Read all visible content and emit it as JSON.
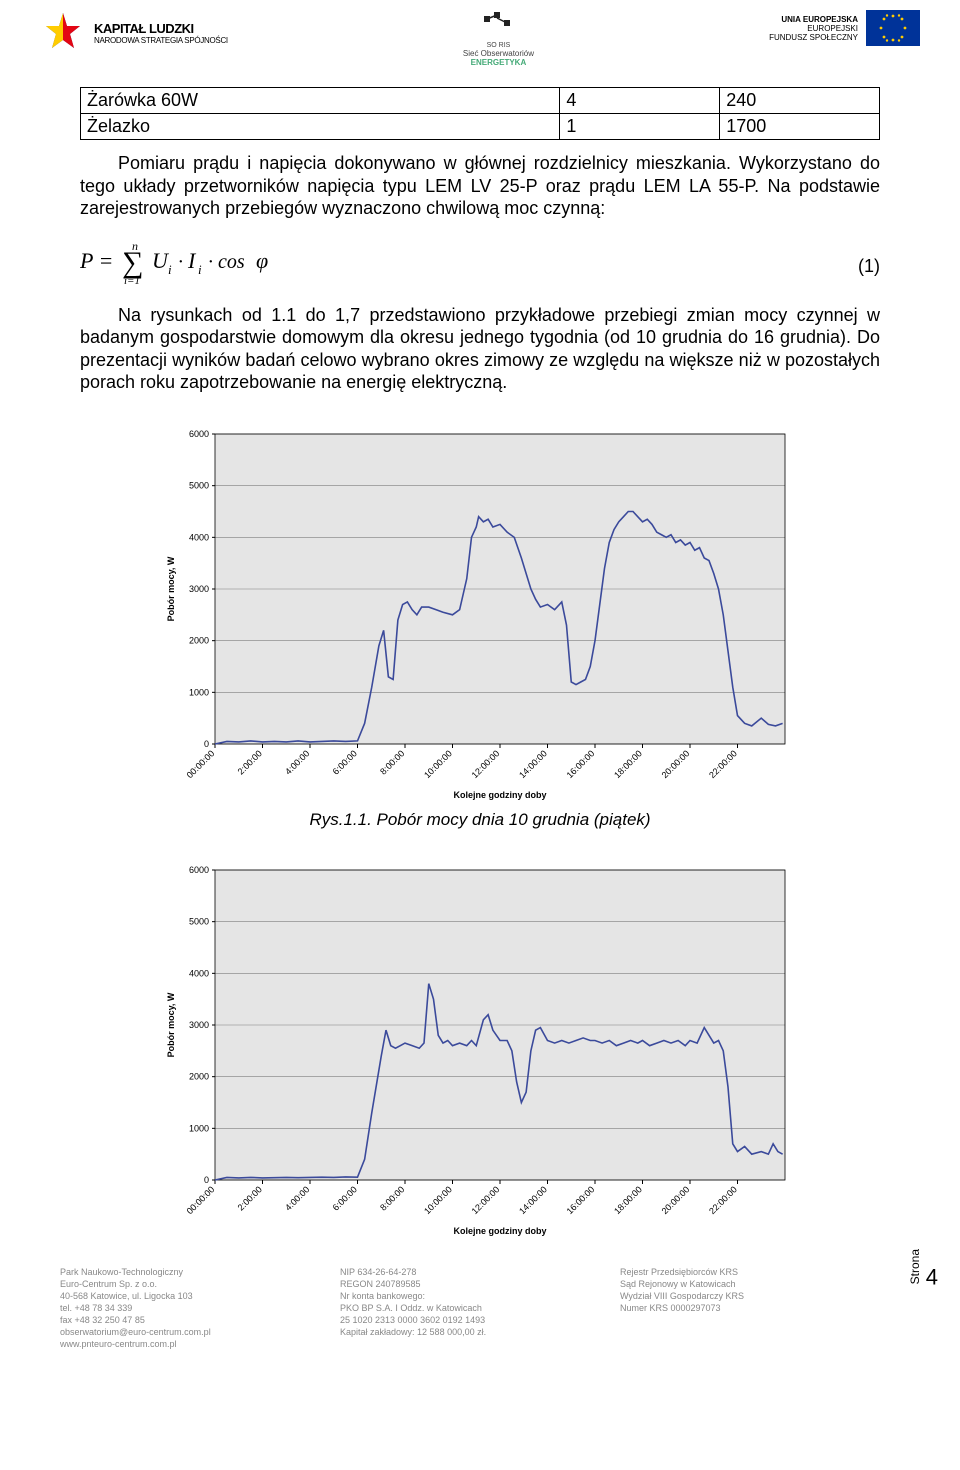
{
  "header": {
    "kl_title": "KAPITAŁ LUDZKI",
    "kl_sub": "NARODOWA STRATEGIA SPÓJNOŚCI",
    "center_line1": "SO RIS",
    "center_line2": "Sieć Obserwatoriów",
    "center_line3": "ENERGETYKA",
    "eu_line1": "UNIA EUROPEJSKA",
    "eu_line2": "EUROPEJSKI",
    "eu_line3": "FUNDUSZ SPOŁECZNY"
  },
  "table": {
    "rows": [
      [
        "Żarówka 60W",
        "4",
        "240"
      ],
      [
        "Żelazko",
        "1",
        "1700"
      ]
    ]
  },
  "paragraph1": "Pomiaru prądu i napięcia dokonywano w głównej rozdzielnicy mieszkania. Wykorzystano do tego układy przetworników napięcia typu LEM LV 25-P oraz prądu LEM LA 55-P. Na podstawie zarejestrowanych przebiegów wyznaczono chwilową moc czynną:",
  "eq_number": "(1)",
  "paragraph2": "Na rysunkach od 1.1 do 1,7 przedstawiono przykładowe przebiegi zmian mocy czynnej w badanym gospodarstwie domowym dla okresu jednego tygodnia (od 10 grudnia do 16 grudnia). Do prezentacji wyników badań celowo wybrano okres zimowy ze względu na większe niż w pozostałych porach roku zapotrzebowanie na energię elektryczną.",
  "caption1": "Rys.1.1. Pobór mocy dnia 10 grudnia (piątek)",
  "chart1": {
    "type": "line",
    "ylabel": "Pobór mocy, W",
    "xlabel": "Kolejne godziny doby",
    "ylim": [
      0,
      6000
    ],
    "ytick_step": 1000,
    "xticks": [
      "00:00:00",
      "2:00:00",
      "4:00:00",
      "6:00:00",
      "8:00:00",
      "10:00:00",
      "12:00:00",
      "14:00:00",
      "16:00:00",
      "18:00:00",
      "20:00:00",
      "22:00:00"
    ],
    "line_color": "#3b4a9b",
    "grid_color": "#7f7f7f",
    "plot_bg": "#e5e5e5",
    "background": "#ffffff",
    "font_size": 9,
    "points": [
      [
        0,
        0
      ],
      [
        0.5,
        50
      ],
      [
        1,
        40
      ],
      [
        1.5,
        60
      ],
      [
        2,
        40
      ],
      [
        2.5,
        50
      ],
      [
        3,
        40
      ],
      [
        3.5,
        60
      ],
      [
        4,
        40
      ],
      [
        4.5,
        50
      ],
      [
        5,
        60
      ],
      [
        5.5,
        50
      ],
      [
        6,
        60
      ],
      [
        6.3,
        400
      ],
      [
        6.6,
        1100
      ],
      [
        6.9,
        1900
      ],
      [
        7.1,
        2200
      ],
      [
        7.3,
        1300
      ],
      [
        7.5,
        1250
      ],
      [
        7.7,
        2400
      ],
      [
        7.9,
        2700
      ],
      [
        8.1,
        2750
      ],
      [
        8.3,
        2600
      ],
      [
        8.5,
        2500
      ],
      [
        8.7,
        2650
      ],
      [
        9,
        2650
      ],
      [
        9.3,
        2600
      ],
      [
        9.6,
        2550
      ],
      [
        10,
        2500
      ],
      [
        10.3,
        2600
      ],
      [
        10.6,
        3200
      ],
      [
        10.8,
        4000
      ],
      [
        11,
        4200
      ],
      [
        11.1,
        4400
      ],
      [
        11.3,
        4300
      ],
      [
        11.5,
        4350
      ],
      [
        11.7,
        4200
      ],
      [
        12,
        4250
      ],
      [
        12.3,
        4100
      ],
      [
        12.6,
        4000
      ],
      [
        12.9,
        3600
      ],
      [
        13.1,
        3300
      ],
      [
        13.3,
        3000
      ],
      [
        13.5,
        2800
      ],
      [
        13.7,
        2650
      ],
      [
        14,
        2700
      ],
      [
        14.3,
        2600
      ],
      [
        14.6,
        2750
      ],
      [
        14.8,
        2300
      ],
      [
        15,
        1200
      ],
      [
        15.2,
        1150
      ],
      [
        15.4,
        1200
      ],
      [
        15.6,
        1250
      ],
      [
        15.8,
        1500
      ],
      [
        16,
        2000
      ],
      [
        16.2,
        2700
      ],
      [
        16.4,
        3400
      ],
      [
        16.6,
        3900
      ],
      [
        16.8,
        4150
      ],
      [
        17,
        4300
      ],
      [
        17.2,
        4400
      ],
      [
        17.4,
        4500
      ],
      [
        17.6,
        4500
      ],
      [
        17.8,
        4400
      ],
      [
        18,
        4300
      ],
      [
        18.2,
        4350
      ],
      [
        18.4,
        4250
      ],
      [
        18.6,
        4100
      ],
      [
        18.8,
        4050
      ],
      [
        19,
        4000
      ],
      [
        19.2,
        4050
      ],
      [
        19.4,
        3900
      ],
      [
        19.6,
        3950
      ],
      [
        19.8,
        3850
      ],
      [
        20,
        3900
      ],
      [
        20.2,
        3750
      ],
      [
        20.4,
        3800
      ],
      [
        20.6,
        3600
      ],
      [
        20.8,
        3550
      ],
      [
        21,
        3300
      ],
      [
        21.2,
        3000
      ],
      [
        21.4,
        2500
      ],
      [
        21.6,
        1800
      ],
      [
        21.8,
        1100
      ],
      [
        22,
        550
      ],
      [
        22.3,
        400
      ],
      [
        22.6,
        350
      ],
      [
        23,
        500
      ],
      [
        23.3,
        380
      ],
      [
        23.6,
        350
      ],
      [
        23.9,
        400
      ]
    ]
  },
  "chart2": {
    "type": "line",
    "ylabel": "Pobór mocy, W",
    "xlabel": "Kolejne godziny doby",
    "ylim": [
      0,
      6000
    ],
    "ytick_step": 1000,
    "xticks": [
      "00:00:00",
      "2:00:00",
      "4:00:00",
      "6:00:00",
      "8:00:00",
      "10:00:00",
      "12:00:00",
      "14:00:00",
      "16:00:00",
      "18:00:00",
      "20:00:00",
      "22:00:00"
    ],
    "line_color": "#3b4a9b",
    "grid_color": "#7f7f7f",
    "plot_bg": "#e5e5e5",
    "background": "#ffffff",
    "font_size": 9,
    "points": [
      [
        0,
        0
      ],
      [
        0.5,
        50
      ],
      [
        1,
        40
      ],
      [
        1.5,
        50
      ],
      [
        2,
        40
      ],
      [
        2.5,
        45
      ],
      [
        3,
        50
      ],
      [
        3.5,
        45
      ],
      [
        4,
        50
      ],
      [
        4.5,
        55
      ],
      [
        5,
        50
      ],
      [
        5.5,
        60
      ],
      [
        6,
        55
      ],
      [
        6.3,
        400
      ],
      [
        6.6,
        1300
      ],
      [
        7,
        2400
      ],
      [
        7.2,
        2900
      ],
      [
        7.4,
        2600
      ],
      [
        7.6,
        2550
      ],
      [
        7.8,
        2600
      ],
      [
        8,
        2650
      ],
      [
        8.3,
        2600
      ],
      [
        8.6,
        2550
      ],
      [
        8.8,
        2650
      ],
      [
        9,
        3800
      ],
      [
        9.2,
        3500
      ],
      [
        9.4,
        2800
      ],
      [
        9.6,
        2650
      ],
      [
        9.8,
        2700
      ],
      [
        10,
        2600
      ],
      [
        10.3,
        2650
      ],
      [
        10.6,
        2600
      ],
      [
        10.8,
        2700
      ],
      [
        11,
        2600
      ],
      [
        11.3,
        3100
      ],
      [
        11.5,
        3200
      ],
      [
        11.7,
        2900
      ],
      [
        12,
        2700
      ],
      [
        12.3,
        2700
      ],
      [
        12.5,
        2500
      ],
      [
        12.7,
        1900
      ],
      [
        12.9,
        1500
      ],
      [
        13.1,
        1700
      ],
      [
        13.3,
        2500
      ],
      [
        13.5,
        2900
      ],
      [
        13.7,
        2950
      ],
      [
        14,
        2700
      ],
      [
        14.3,
        2650
      ],
      [
        14.6,
        2700
      ],
      [
        14.9,
        2650
      ],
      [
        15.2,
        2700
      ],
      [
        15.5,
        2750
      ],
      [
        15.8,
        2700
      ],
      [
        16,
        2700
      ],
      [
        16.3,
        2650
      ],
      [
        16.6,
        2700
      ],
      [
        16.9,
        2600
      ],
      [
        17.2,
        2650
      ],
      [
        17.5,
        2700
      ],
      [
        17.8,
        2650
      ],
      [
        18,
        2700
      ],
      [
        18.3,
        2600
      ],
      [
        18.6,
        2650
      ],
      [
        18.9,
        2700
      ],
      [
        19.2,
        2650
      ],
      [
        19.5,
        2700
      ],
      [
        19.8,
        2600
      ],
      [
        20,
        2700
      ],
      [
        20.3,
        2650
      ],
      [
        20.6,
        2950
      ],
      [
        20.8,
        2800
      ],
      [
        21,
        2650
      ],
      [
        21.2,
        2700
      ],
      [
        21.4,
        2500
      ],
      [
        21.6,
        1800
      ],
      [
        21.8,
        700
      ],
      [
        22,
        550
      ],
      [
        22.3,
        650
      ],
      [
        22.6,
        500
      ],
      [
        23,
        550
      ],
      [
        23.3,
        500
      ],
      [
        23.5,
        700
      ],
      [
        23.7,
        550
      ],
      [
        23.9,
        500
      ]
    ]
  },
  "side": {
    "label": "Strona",
    "num": "4"
  },
  "footer": {
    "col1": [
      "Park Naukowo-Technologiczny",
      "Euro-Centrum Sp. z o.o.",
      "40-568 Katowice, ul. Ligocka 103",
      "tel. +48 78 34 339",
      "fax +48 32 250 47 85",
      "obserwatorium@euro-centrum.com.pl",
      "www.pnteuro-centrum.com.pl"
    ],
    "col2": [
      "NIP 634-26-64-278",
      "REGON 240789585",
      "Nr konta bankowego:",
      "PKO BP S.A. I Oddz. w Katowicach",
      "25 1020 2313 0000 3602 0192 1493",
      "Kapitał zakładowy: 12 588 000,00 zł."
    ],
    "col3": [
      "Rejestr Przedsiębiorców KRS",
      "Sąd Rejonowy w Katowicach",
      "Wydział VIII Gospodarczy KRS",
      "Numer KRS 0000297073"
    ]
  }
}
